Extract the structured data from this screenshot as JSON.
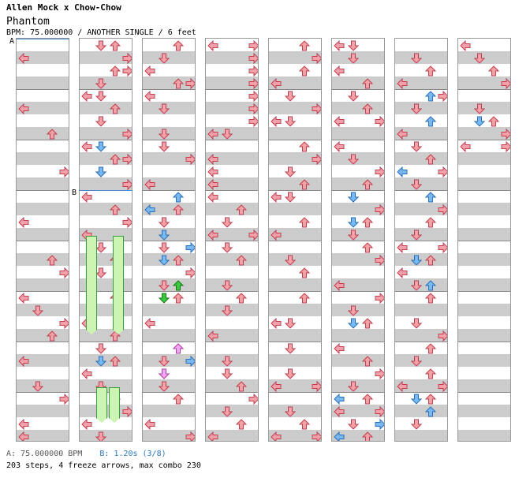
{
  "header": {
    "artist": "Allen Mock x Chow-Chow",
    "title": "Phantom",
    "info": "BPM: 75.000000 / ANOTHER SINGLE / 6 feet"
  },
  "markers": {
    "a_label": "A",
    "b_label": "B"
  },
  "footer": {
    "bpm_a": "A: 75.000000 BPM",
    "bpm_b": "B: 1.20s (3/8)",
    "stats": "203 steps, 4 freeze arrows, max combo 230"
  },
  "colors": {
    "normal": "#f4a0a8",
    "normal_stroke": "#c04050",
    "blue": "#7ab8f0",
    "blue_stroke": "#2a70c0",
    "green": "#3cc83c",
    "green_stroke": "#1a7a1a",
    "pink": "#f2a8f0",
    "pink_stroke": "#b040b0",
    "freeze": "#ccf5b4"
  },
  "chart": {
    "columns": 8,
    "notes": [
      [
        [
          1,
          "L"
        ],
        [
          5,
          "L"
        ],
        [
          7,
          "U"
        ],
        [
          10,
          "R"
        ],
        [
          14,
          "L"
        ],
        [
          17,
          "U"
        ],
        [
          18,
          "R"
        ],
        [
          20,
          "L"
        ],
        [
          21,
          "D"
        ],
        [
          22,
          "R"
        ],
        [
          23,
          "U"
        ],
        [
          25,
          "L"
        ],
        [
          27,
          "D"
        ],
        [
          28,
          "R"
        ],
        [
          30,
          "L"
        ],
        [
          31,
          "L"
        ]
      ],
      [
        [
          0,
          "D"
        ],
        [
          0,
          "U"
        ],
        [
          1,
          "R"
        ],
        [
          2,
          "U"
        ],
        [
          2,
          "R"
        ],
        [
          3,
          "D"
        ],
        [
          4,
          "L"
        ],
        [
          4,
          "D"
        ],
        [
          5,
          "U"
        ],
        [
          6,
          "D"
        ],
        [
          7,
          "R"
        ],
        [
          8,
          "L"
        ],
        [
          9,
          "U"
        ],
        [
          9,
          "R"
        ],
        [
          10,
          "D"
        ],
        [
          11,
          "R"
        ],
        [
          12,
          "L"
        ],
        [
          13,
          "U"
        ],
        [
          14,
          "R"
        ],
        [
          15,
          "L"
        ],
        [
          16,
          "D"
        ],
        [
          17,
          "U"
        ],
        [
          18,
          "D"
        ],
        [
          20,
          "U"
        ],
        [
          22,
          "L"
        ],
        [
          23,
          "U"
        ],
        [
          24,
          "D"
        ],
        [
          25,
          "U"
        ],
        [
          26,
          "L"
        ],
        [
          27,
          "D"
        ],
        [
          28,
          "U"
        ],
        [
          29,
          "R"
        ],
        [
          30,
          "L"
        ],
        [
          31,
          "D"
        ]
      ],
      [
        [
          0,
          "U"
        ],
        [
          1,
          "D"
        ],
        [
          2,
          "L"
        ],
        [
          3,
          "U"
        ],
        [
          3,
          "R"
        ],
        [
          4,
          "L"
        ],
        [
          5,
          "D"
        ],
        [
          7,
          "D"
        ],
        [
          8,
          "D"
        ],
        [
          9,
          "R"
        ],
        [
          11,
          "L"
        ],
        [
          13,
          "U"
        ],
        [
          14,
          "D"
        ],
        [
          16,
          "D"
        ],
        [
          17,
          "U"
        ],
        [
          18,
          "R"
        ],
        [
          19,
          "D"
        ],
        [
          20,
          "U"
        ],
        [
          22,
          "L"
        ],
        [
          24,
          "U"
        ],
        [
          25,
          "D"
        ],
        [
          26,
          "D"
        ],
        [
          27,
          "D"
        ],
        [
          28,
          "U"
        ],
        [
          30,
          "L"
        ],
        [
          31,
          "R"
        ]
      ],
      [
        [
          0,
          "L"
        ],
        [
          0,
          "R"
        ],
        [
          1,
          "R"
        ],
        [
          2,
          "R"
        ],
        [
          3,
          "R"
        ],
        [
          4,
          "R"
        ],
        [
          5,
          "R"
        ],
        [
          6,
          "R"
        ],
        [
          7,
          "L"
        ],
        [
          7,
          "D"
        ],
        [
          9,
          "L"
        ],
        [
          10,
          "L"
        ],
        [
          11,
          "L"
        ],
        [
          12,
          "L"
        ],
        [
          13,
          "U"
        ],
        [
          14,
          "D"
        ],
        [
          15,
          "L"
        ],
        [
          15,
          "R"
        ],
        [
          16,
          "D"
        ],
        [
          17,
          "U"
        ],
        [
          19,
          "D"
        ],
        [
          20,
          "U"
        ],
        [
          21,
          "D"
        ],
        [
          23,
          "L"
        ],
        [
          25,
          "D"
        ],
        [
          26,
          "D"
        ],
        [
          27,
          "U"
        ],
        [
          28,
          "R"
        ],
        [
          29,
          "D"
        ],
        [
          30,
          "U"
        ],
        [
          31,
          "L"
        ]
      ],
      [
        [
          0,
          "U"
        ],
        [
          1,
          "R"
        ],
        [
          2,
          "U"
        ],
        [
          3,
          "L"
        ],
        [
          4,
          "D"
        ],
        [
          5,
          "R"
        ],
        [
          6,
          "L"
        ],
        [
          6,
          "D"
        ],
        [
          8,
          "U"
        ],
        [
          9,
          "R"
        ],
        [
          10,
          "D"
        ],
        [
          11,
          "U"
        ],
        [
          12,
          "L"
        ],
        [
          12,
          "D"
        ],
        [
          14,
          "U"
        ],
        [
          15,
          "L"
        ],
        [
          17,
          "D"
        ],
        [
          18,
          "U"
        ],
        [
          20,
          "U"
        ],
        [
          22,
          "L"
        ],
        [
          22,
          "D"
        ],
        [
          24,
          "D"
        ],
        [
          26,
          "D"
        ],
        [
          27,
          "L"
        ],
        [
          27,
          "R"
        ],
        [
          29,
          "D"
        ],
        [
          30,
          "U"
        ],
        [
          31,
          "L"
        ],
        [
          31,
          "R"
        ]
      ],
      [
        [
          0,
          "L"
        ],
        [
          0,
          "D"
        ],
        [
          1,
          "D"
        ],
        [
          2,
          "L"
        ],
        [
          3,
          "U"
        ],
        [
          4,
          "D"
        ],
        [
          5,
          "U"
        ],
        [
          6,
          "L"
        ],
        [
          6,
          "R"
        ],
        [
          8,
          "L"
        ],
        [
          9,
          "D"
        ],
        [
          10,
          "R"
        ],
        [
          11,
          "U"
        ],
        [
          12,
          "D"
        ],
        [
          13,
          "R"
        ],
        [
          14,
          "U"
        ],
        [
          15,
          "D"
        ],
        [
          16,
          "U"
        ],
        [
          17,
          "R"
        ],
        [
          19,
          "L"
        ],
        [
          20,
          "R"
        ],
        [
          21,
          "D"
        ],
        [
          22,
          "U"
        ],
        [
          24,
          "L"
        ],
        [
          25,
          "U"
        ],
        [
          26,
          "R"
        ],
        [
          27,
          "D"
        ],
        [
          28,
          "U"
        ],
        [
          29,
          "L"
        ],
        [
          29,
          "R"
        ],
        [
          30,
          "D"
        ],
        [
          31,
          "U"
        ]
      ],
      [
        [
          1,
          "D"
        ],
        [
          2,
          "U"
        ],
        [
          3,
          "L"
        ],
        [
          4,
          "R"
        ],
        [
          5,
          "D"
        ],
        [
          6,
          "U"
        ],
        [
          7,
          "L"
        ],
        [
          8,
          "D"
        ],
        [
          9,
          "U"
        ],
        [
          10,
          "R"
        ],
        [
          11,
          "D"
        ],
        [
          12,
          "U"
        ],
        [
          13,
          "R"
        ],
        [
          14,
          "U"
        ],
        [
          15,
          "D"
        ],
        [
          16,
          "L"
        ],
        [
          16,
          "R"
        ],
        [
          17,
          "U"
        ],
        [
          18,
          "L"
        ],
        [
          19,
          "D"
        ],
        [
          20,
          "U"
        ],
        [
          22,
          "D"
        ],
        [
          23,
          "R"
        ],
        [
          24,
          "U"
        ],
        [
          25,
          "D"
        ],
        [
          26,
          "U"
        ],
        [
          27,
          "L"
        ],
        [
          27,
          "R"
        ],
        [
          28,
          "U"
        ],
        [
          30,
          "D"
        ]
      ],
      [
        [
          0,
          "L"
        ],
        [
          1,
          "D"
        ],
        [
          2,
          "U"
        ],
        [
          3,
          "R"
        ],
        [
          5,
          "D"
        ],
        [
          6,
          "U"
        ],
        [
          7,
          "R"
        ],
        [
          8,
          "L"
        ],
        [
          8,
          "R"
        ]
      ]
    ],
    "specials": [
      [
        1,
        8,
        "D",
        "blue"
      ],
      [
        1,
        10,
        "D",
        "blue"
      ],
      [
        1,
        25,
        "D",
        "blue"
      ],
      [
        2,
        12,
        "U",
        "blue"
      ],
      [
        2,
        13,
        "L",
        "blue"
      ],
      [
        2,
        15,
        "D",
        "blue"
      ],
      [
        2,
        16,
        "R",
        "blue"
      ],
      [
        2,
        17,
        "D",
        "blue"
      ],
      [
        2,
        19,
        "U",
        "green"
      ],
      [
        2,
        20,
        "D",
        "green"
      ],
      [
        2,
        24,
        "U",
        "pink"
      ],
      [
        2,
        25,
        "R",
        "blue"
      ],
      [
        2,
        26,
        "D",
        "pink"
      ],
      [
        5,
        12,
        "D",
        "blue"
      ],
      [
        5,
        14,
        "D",
        "blue"
      ],
      [
        5,
        22,
        "D",
        "blue"
      ],
      [
        5,
        28,
        "L",
        "blue"
      ],
      [
        5,
        30,
        "R",
        "blue"
      ],
      [
        5,
        31,
        "L",
        "blue"
      ],
      [
        6,
        4,
        "U",
        "blue"
      ],
      [
        6,
        6,
        "U",
        "blue"
      ],
      [
        6,
        10,
        "L",
        "blue"
      ],
      [
        6,
        12,
        "U",
        "blue"
      ],
      [
        6,
        17,
        "D",
        "blue"
      ],
      [
        6,
        19,
        "U",
        "blue"
      ],
      [
        6,
        28,
        "D",
        "blue"
      ],
      [
        6,
        29,
        "U",
        "blue"
      ],
      [
        7,
        6,
        "D",
        "blue"
      ]
    ],
    "freezes": [
      [
        1,
        0.12,
        15.5,
        23
      ],
      [
        1,
        0.62,
        15.5,
        23
      ],
      [
        1,
        0.31,
        27.5,
        30
      ],
      [
        1,
        0.55,
        27.5,
        30
      ]
    ]
  }
}
